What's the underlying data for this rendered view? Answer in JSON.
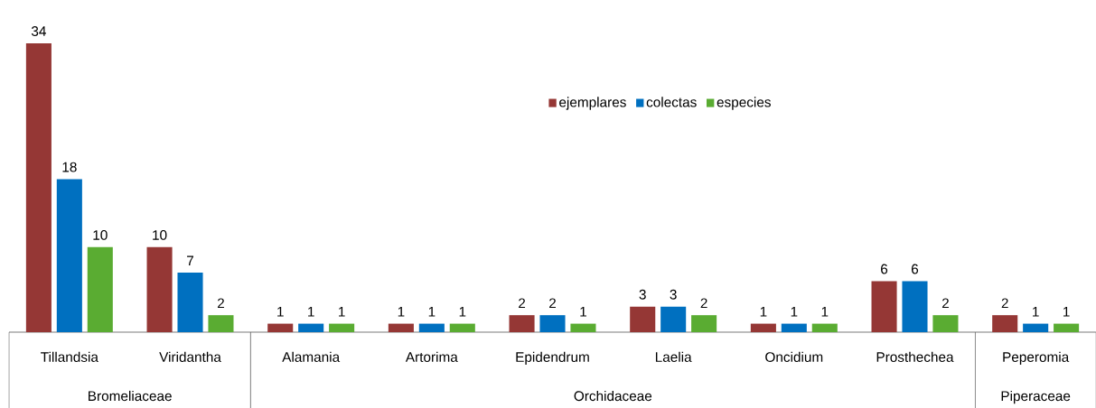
{
  "chart_data": {
    "type": "bar",
    "categories": [
      "Tillandsia",
      "Viridantha",
      "Alamania",
      "Artorima",
      "Epidendrum",
      "Laelia",
      "Oncidium",
      "Prosthechea",
      "Peperomia"
    ],
    "series": [
      {
        "name": "ejemplares",
        "color": "#953735",
        "values": [
          34,
          10,
          1,
          1,
          2,
          3,
          1,
          6,
          2
        ]
      },
      {
        "name": "colectas",
        "color": "#0070c0",
        "values": [
          18,
          7,
          1,
          1,
          2,
          3,
          1,
          6,
          1
        ]
      },
      {
        "name": "especies",
        "color": "#5aac32",
        "values": [
          10,
          2,
          1,
          1,
          1,
          2,
          1,
          2,
          1
        ]
      }
    ],
    "data_labels": true,
    "legend": "top",
    "annotations": [
      "Bromeliaceae",
      "Orchidaceae",
      "Piperaceae"
    ]
  }
}
